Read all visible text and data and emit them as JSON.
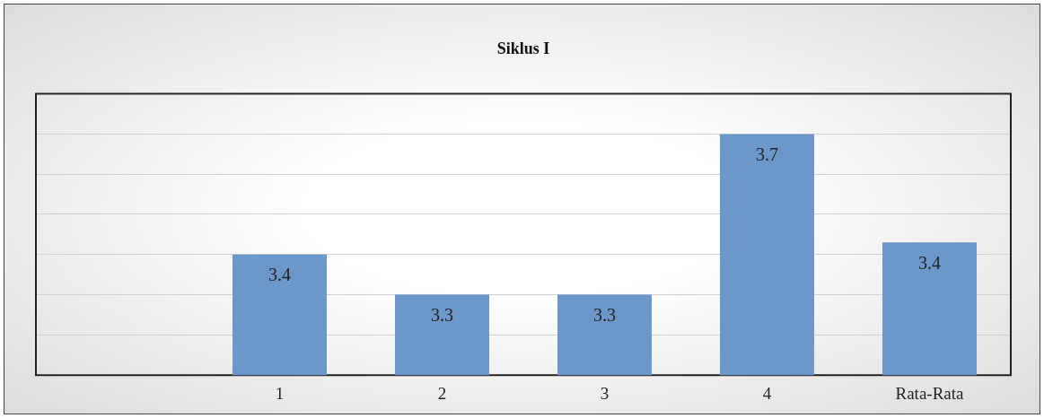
{
  "chart_data": {
    "type": "bar",
    "title": "Siklus I",
    "categories": [
      null,
      "1",
      "2",
      "3",
      "4",
      "Rata-Rata"
    ],
    "values": [
      null,
      3.4,
      3.3,
      3.3,
      3.7,
      3.43
    ],
    "value_labels": [
      null,
      "3.4",
      "3.3",
      "3.3",
      "3.7",
      "3.4"
    ],
    "color": "#6b97cb",
    "ylim": [
      3.1,
      3.8
    ],
    "yticks": [
      {
        "value": 3.1,
        "label": null
      },
      {
        "value": 3.2,
        "label": null
      },
      {
        "value": 3.3,
        "label": null
      },
      {
        "value": 3.4,
        "label": null
      },
      {
        "value": 3.5,
        "label": null
      },
      {
        "value": 3.6,
        "label": null
      },
      {
        "value": 3.7,
        "label": null
      },
      {
        "value": 3.8,
        "label": null
      }
    ],
    "grid": "y",
    "tick_labels": "x"
  }
}
